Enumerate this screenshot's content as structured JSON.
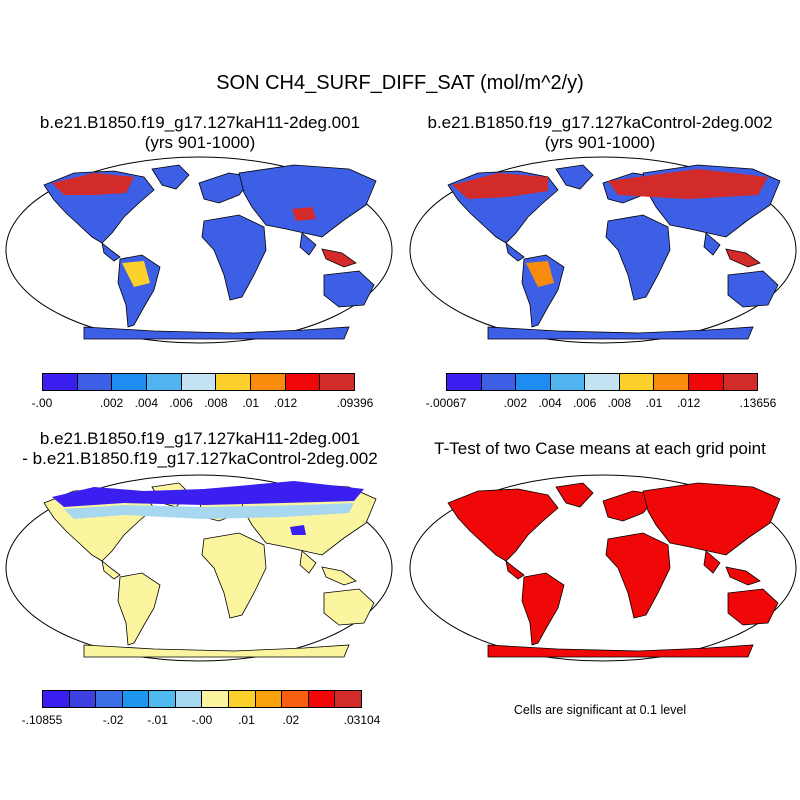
{
  "title": "SON CH4_SURF_DIFF_SAT (mol/m^2/y)",
  "panels": {
    "top_left": {
      "title_line1": "b.e21.B1850.f19_g17.127kaH11-2deg.001",
      "title_line2": "(yrs 901-1000)"
    },
    "top_right": {
      "title_line1": "b.e21.B1850.f19_g17.127kaControl-2deg.002",
      "title_line2": "(yrs 901-1000)"
    },
    "bottom_left": {
      "title_line1": "b.e21.B1850.f19_g17.127kaH11-2deg.001",
      "title_line2": "- b.e21.B1850.f19_g17.127kaControl-2deg.002"
    },
    "bottom_right": {
      "title_line1": "T-Test of two Case means at each grid point",
      "caption": "Cells are significant at 0.1 level"
    }
  },
  "colorbars": {
    "top_left": {
      "labels": [
        "-.00",
        ".002",
        ".004",
        ".006",
        ".008",
        ".01",
        ".012",
        ".09396"
      ],
      "colors": [
        "#3b1ff0",
        "#3c5fe6",
        "#1e8cf0",
        "#50b4f0",
        "#c4e4f4",
        "#fcd12c",
        "#f98c0c",
        "#f00808",
        "#d32a2a"
      ]
    },
    "top_right": {
      "labels": [
        "-.00067",
        ".002",
        ".004",
        ".006",
        ".008",
        ".01",
        ".012",
        ".13656"
      ],
      "colors": [
        "#3b1ff0",
        "#3c5fe6",
        "#1e8cf0",
        "#50b4f0",
        "#c4e4f4",
        "#fcd12c",
        "#f98c0c",
        "#f00808",
        "#d32a2a"
      ]
    },
    "bottom_left": {
      "labels": [
        "-.10855",
        "-.02",
        "-.01",
        "-.00",
        ".01",
        ".02",
        ".03104"
      ],
      "colors": [
        "#3b1ff0",
        "#3c40e0",
        "#3c6ee6",
        "#1e96f0",
        "#50b9f0",
        "#a8d8f0",
        "#fcf5a0",
        "#fcd12c",
        "#f9a00c",
        "#f86010",
        "#f00808",
        "#d32a2a"
      ]
    }
  },
  "map_colors": {
    "ocean": "#ffffff",
    "outline": "#000000",
    "tl_land": "#3c5fe6",
    "tl_hot": "#d32a2a",
    "tl_warm": "#fcd12c",
    "tr_land": "#3c5fe6",
    "tr_hot": "#d32a2a",
    "tr_warm": "#f98c0c",
    "bl_land": "#fcf5a0",
    "bl_cold": "#3b1ff0",
    "bl_cool": "#a8d8f0",
    "br_land": "#f00808"
  }
}
